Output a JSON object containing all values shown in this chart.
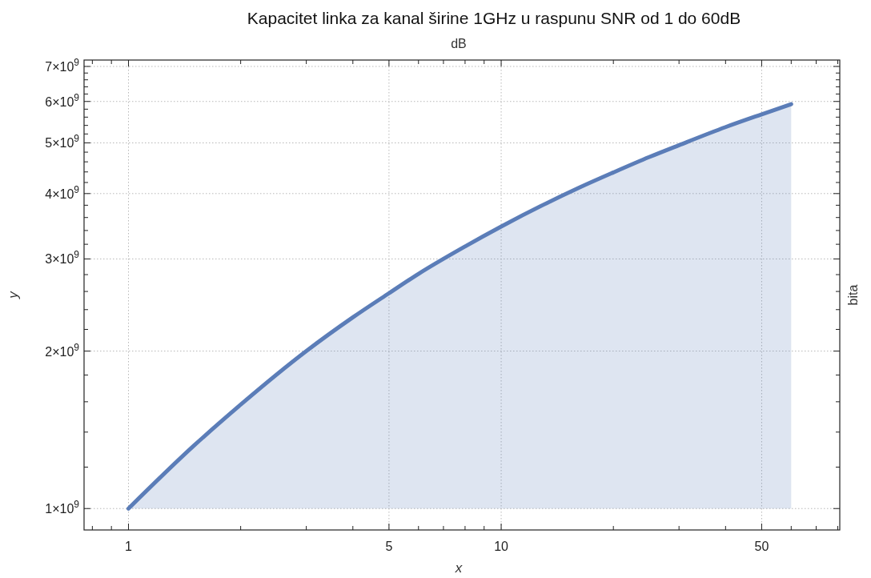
{
  "chart_data": {
    "type": "line",
    "title": "Kapacitet linka za kanal širine 1GHz u raspunu SNR od 1 do 60dB",
    "x2label": "dB",
    "y2label": "bita",
    "xlabel": "x",
    "ylabel": "y",
    "log": "xy",
    "grid": true,
    "line_style": "solid",
    "marker": "none",
    "x": [
      1,
      1.5,
      2,
      3,
      4,
      5,
      6,
      8,
      10,
      13,
      16,
      20,
      25,
      30,
      40,
      50,
      60
    ],
    "series": [
      {
        "color": "#5b7db8",
        "values": [
          1000000000.0,
          1320000000.0,
          1580000000.0,
          2000000000.0,
          2320000000.0,
          2580000000.0,
          2810000000.0,
          3170000000.0,
          3460000000.0,
          3810000000.0,
          4090000000.0,
          4390000000.0,
          4700000000.0,
          4950000000.0,
          5360000000.0,
          5670000000.0,
          5930000000.0
        ],
        "lower": [
          1000000000.0,
          1000000000.0,
          1000000000.0,
          1000000000.0,
          1000000000.0,
          1000000000.0,
          1000000000.0,
          1000000000.0,
          1000000000.0,
          1000000000.0,
          1000000000.0,
          1000000000.0,
          1000000000.0,
          1000000000.0,
          1000000000.0,
          1000000000.0,
          1000000000.0
        ],
        "upper": [
          1000000000.0,
          1320000000.0,
          1580000000.0,
          2000000000.0,
          2320000000.0,
          2580000000.0,
          2810000000.0,
          3170000000.0,
          3460000000.0,
          3810000000.0,
          4090000000.0,
          4390000000.0,
          4700000000.0,
          4950000000.0,
          5360000000.0,
          5670000000.0,
          5930000000.0
        ]
      }
    ],
    "xlim": [
      0.76,
      81
    ],
    "xticks": [
      {
        "value": 0.8,
        "label": null
      },
      {
        "value": 0.9,
        "label": null
      },
      1,
      {
        "value": 2,
        "label": null
      },
      {
        "value": 3,
        "label": null
      },
      {
        "value": 4,
        "label": null
      },
      5,
      {
        "value": 6,
        "label": null
      },
      {
        "value": 7,
        "label": null
      },
      {
        "value": 8,
        "label": null
      },
      {
        "value": 9,
        "label": null
      },
      10,
      {
        "value": 20,
        "label": null
      },
      {
        "value": 30,
        "label": null
      },
      {
        "value": 40,
        "label": null
      },
      50,
      {
        "value": 60,
        "label": null
      },
      {
        "value": 70,
        "label": null
      },
      {
        "value": 80,
        "label": null
      }
    ],
    "ylim": [
      910000000.0,
      7200000000.0
    ],
    "yticks": [
      {
        "value": 1000000000.0,
        "label": "1×10$^{9}$"
      },
      {
        "value": 1200000000.0,
        "label": null
      },
      {
        "value": 1400000000.0,
        "label": null
      },
      {
        "value": 1600000000.0,
        "label": null
      },
      {
        "value": 1800000000.0,
        "label": null
      },
      {
        "value": 2000000000.0,
        "label": "2×10$^{9}$"
      },
      {
        "value": 2200000000.0,
        "label": null
      },
      {
        "value": 2400000000.0,
        "label": null
      },
      {
        "value": 2600000000.0,
        "label": null
      },
      {
        "value": 2800000000.0,
        "label": null
      },
      {
        "value": 3000000000.0,
        "label": "3×10$^{9}$"
      },
      {
        "value": 3200000000.0,
        "label": null
      },
      {
        "value": 3400000000.0,
        "label": null
      },
      {
        "value": 3600000000.0,
        "label": null
      },
      {
        "value": 3800000000.0,
        "label": null
      },
      {
        "value": 4000000000.0,
        "label": "4×10$^{9}$"
      },
      {
        "value": 4200000000.0,
        "label": null
      },
      {
        "value": 4400000000.0,
        "label": null
      },
      {
        "value": 4600000000.0,
        "label": null
      },
      {
        "value": 4800000000.0,
        "label": null
      },
      {
        "value": 5000000000.0,
        "label": "5×10$^{9}$"
      },
      {
        "value": 5200000000.0,
        "label": null
      },
      {
        "value": 5400000000.0,
        "label": null
      },
      {
        "value": 5600000000.0,
        "label": null
      },
      {
        "value": 5800000000.0,
        "label": null
      },
      {
        "value": 6000000000.0,
        "label": "6×10$^{9}$"
      },
      {
        "value": 6200000000.0,
        "label": null
      },
      {
        "value": 6400000000.0,
        "label": null
      },
      {
        "value": 6600000000.0,
        "label": null
      },
      {
        "value": 6800000000.0,
        "label": null
      },
      {
        "value": 7000000000.0,
        "label": "7×10$^{9}$"
      }
    ]
  }
}
